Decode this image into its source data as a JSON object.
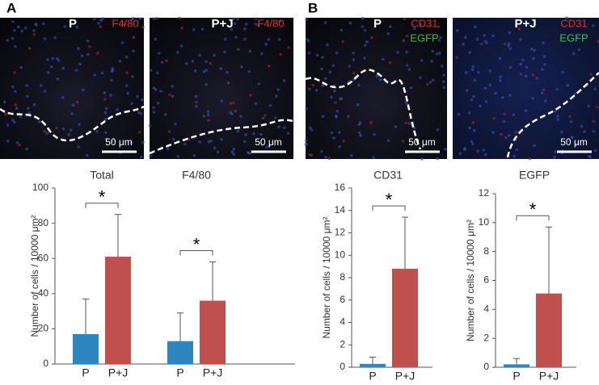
{
  "panel_labels": [
    "A",
    "B"
  ],
  "images": [
    {
      "labels": [
        "P",
        "F4/80"
      ],
      "scale": "50 μm"
    },
    {
      "labels": [
        "P+J",
        "F4/80"
      ],
      "scale": "50 μm"
    },
    {
      "labels": [
        "P",
        "CD31",
        "EGFP"
      ],
      "scale": "50 μm"
    },
    {
      "labels": [
        "P+J",
        "CD31",
        "EGFP"
      ],
      "scale": "50 μm"
    }
  ],
  "chart_data": [
    {
      "type": "bar",
      "categories": [
        "Total",
        "F4/80"
      ],
      "ylabel": "Number of cells / 10000 μm²",
      "series": [
        {
          "name": "P",
          "color": "#2e86c1",
          "values": [
            17,
            13
          ],
          "errors": [
            20,
            16
          ]
        },
        {
          "name": "P+J",
          "color": "#c0504d",
          "values": [
            61,
            36
          ],
          "errors": [
            24,
            22
          ]
        }
      ],
      "annotations": [
        "*",
        "*"
      ],
      "ylim": [
        0,
        100
      ],
      "yticks": [
        0,
        20,
        40,
        60,
        80,
        100
      ]
    },
    {
      "type": "bar",
      "title": "CD31",
      "categories": [
        "P",
        "P+J"
      ],
      "ylabel": "Number of cells / 10000 μm²",
      "values": [
        0.3,
        8.8
      ],
      "errors": [
        0.6,
        4.6
      ],
      "colors": [
        "#2e86c1",
        "#c0504d"
      ],
      "annotations": [
        "*"
      ],
      "ylim": [
        0,
        16
      ],
      "yticks": [
        0,
        2,
        4,
        6,
        8,
        10,
        12,
        14,
        16
      ]
    },
    {
      "type": "bar",
      "title": "EGFP",
      "categories": [
        "P",
        "P+J"
      ],
      "ylabel": "Number of cells / 10000 μm²",
      "values": [
        0.2,
        5.1
      ],
      "errors": [
        0.4,
        4.6
      ],
      "colors": [
        "#2e86c1",
        "#c0504d"
      ],
      "annotations": [
        "*"
      ],
      "ylim": [
        0,
        12
      ],
      "yticks": [
        0,
        2,
        4,
        6,
        8,
        10,
        12
      ]
    }
  ]
}
